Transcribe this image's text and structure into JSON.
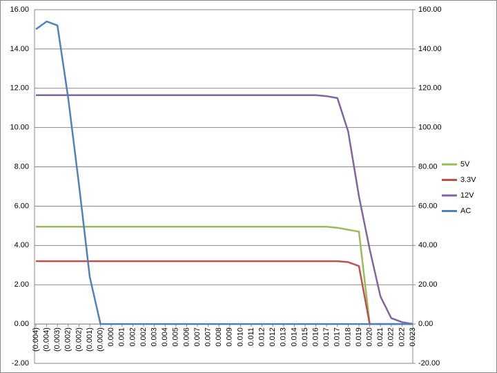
{
  "chart_data": {
    "type": "line",
    "categories": [
      "(0.004)",
      "(0.004)",
      "(0.003)",
      "(0.002)",
      "(0.002)",
      "(0.001)",
      "(0.000)",
      "0.000",
      "0.001",
      "0.002",
      "0.002",
      "0.003",
      "0.004",
      "0.005",
      "0.006",
      "0.007",
      "0.007",
      "0.008",
      "0.009",
      "0.010",
      "0.011",
      "0.012",
      "0.012",
      "0.013",
      "0.014",
      "0.015",
      "0.016",
      "0.017",
      "0.017",
      "0.018",
      "0.019",
      "0.020",
      "0.021",
      "0.022",
      "0.022",
      "0.023"
    ],
    "series": [
      {
        "name": "5V",
        "color": "#9bbb59",
        "values": [
          4.95,
          4.95,
          4.95,
          4.95,
          4.95,
          4.95,
          4.95,
          4.95,
          4.95,
          4.95,
          4.95,
          4.95,
          4.95,
          4.95,
          4.95,
          4.95,
          4.95,
          4.95,
          4.95,
          4.95,
          4.95,
          4.95,
          4.95,
          4.95,
          4.95,
          4.95,
          4.95,
          4.95,
          4.9,
          4.8,
          4.7,
          0,
          0,
          0,
          0,
          0
        ]
      },
      {
        "name": "3.3V",
        "color": "#c0504d",
        "values": [
          3.2,
          3.2,
          3.2,
          3.2,
          3.2,
          3.2,
          3.2,
          3.2,
          3.2,
          3.2,
          3.2,
          3.2,
          3.2,
          3.2,
          3.2,
          3.2,
          3.2,
          3.2,
          3.2,
          3.2,
          3.2,
          3.2,
          3.2,
          3.2,
          3.2,
          3.2,
          3.2,
          3.2,
          3.2,
          3.15,
          2.95,
          0,
          0,
          0,
          0,
          0
        ]
      },
      {
        "name": "12V",
        "color": "#8064a2",
        "values": [
          11.65,
          11.65,
          11.65,
          11.65,
          11.65,
          11.65,
          11.65,
          11.65,
          11.65,
          11.65,
          11.65,
          11.65,
          11.65,
          11.65,
          11.65,
          11.65,
          11.65,
          11.65,
          11.65,
          11.65,
          11.65,
          11.65,
          11.65,
          11.65,
          11.65,
          11.65,
          11.65,
          11.6,
          11.5,
          9.8,
          6.5,
          3.8,
          1.4,
          0.3,
          0.1,
          0
        ]
      },
      {
        "name": "AC",
        "color": "#4f81bd",
        "axis": "y2",
        "values": [
          150,
          154,
          152,
          115,
          71,
          24,
          0,
          0,
          0,
          0,
          0,
          0,
          0,
          0,
          0,
          0,
          0,
          0,
          0,
          0,
          0,
          0,
          0,
          0,
          0,
          0,
          0,
          0,
          0,
          0,
          0,
          0,
          0,
          0,
          0,
          0
        ]
      }
    ],
    "ylim": [
      -2,
      16
    ],
    "yticks": [
      {
        "value": -2,
        "label": "-2.00"
      },
      {
        "value": 0,
        "label": "0.00"
      },
      {
        "value": 2,
        "label": "2.00"
      },
      {
        "value": 4,
        "label": "4.00"
      },
      {
        "value": 6,
        "label": "6.00"
      },
      {
        "value": 8,
        "label": "8.00"
      },
      {
        "value": 10,
        "label": "10.00"
      },
      {
        "value": 12,
        "label": "12.00"
      },
      {
        "value": 14,
        "label": "14.00"
      },
      {
        "value": 16,
        "label": "16.00"
      }
    ],
    "y2lim": [
      -20,
      160
    ],
    "y2ticks": [
      {
        "value": -20,
        "label": "-20.00"
      },
      {
        "value": 0,
        "label": "0.00"
      },
      {
        "value": 20,
        "label": "20.00"
      },
      {
        "value": 40,
        "label": "40.00"
      },
      {
        "value": 60,
        "label": "60.00"
      },
      {
        "value": 80,
        "label": "80.00"
      },
      {
        "value": 100,
        "label": "100.00"
      },
      {
        "value": 120,
        "label": "120.00"
      },
      {
        "value": 140,
        "label": "140.00"
      },
      {
        "value": 160,
        "label": "160.00"
      }
    ],
    "grid": true,
    "legend": "right"
  }
}
